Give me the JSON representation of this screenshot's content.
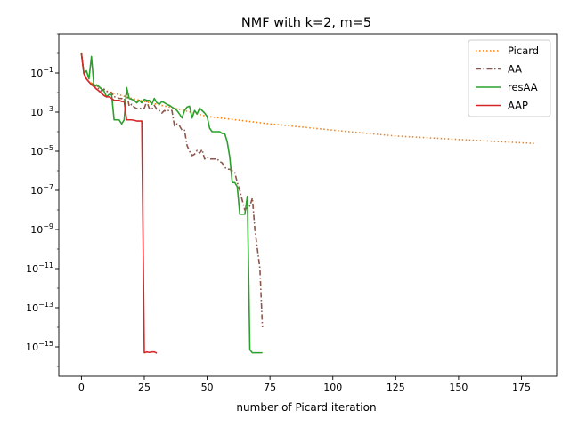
{
  "chart_data": {
    "type": "line",
    "title": "NMF with k=2, m=5",
    "xlabel": "number of Picard iteration",
    "ylabel": "",
    "yscale": "log",
    "xlim": [
      -9,
      189
    ],
    "ylim": [
      3.16e-17,
      10
    ],
    "xticks": [
      0,
      25,
      50,
      75,
      100,
      125,
      150,
      175
    ],
    "xtick_labels": [
      "0",
      "25",
      "50",
      "75",
      "100",
      "125",
      "150",
      "175"
    ],
    "yticks": [
      0.1,
      0.001,
      1e-05,
      1e-07,
      1e-09,
      1e-11,
      1e-13,
      1e-15
    ],
    "ytick_labels": [
      {
        "base": "10",
        "exp": "−1"
      },
      {
        "base": "10",
        "exp": "−3"
      },
      {
        "base": "10",
        "exp": "−5"
      },
      {
        "base": "10",
        "exp": "−7"
      },
      {
        "base": "10",
        "exp": "−9"
      },
      {
        "base": "10",
        "exp": "−11"
      },
      {
        "base": "10",
        "exp": "−13"
      },
      {
        "base": "10",
        "exp": "−15"
      }
    ],
    "grid": false,
    "legend_position": "top-right",
    "series": [
      {
        "name": "Picard",
        "color": "#ff7f0e",
        "dash": "dotted",
        "x": [
          0,
          1,
          2,
          3,
          4,
          5,
          10,
          20,
          30,
          40,
          50,
          75,
          100,
          125,
          150,
          180
        ],
        "y": [
          1.0,
          0.1,
          0.05,
          0.035,
          0.03,
          0.025,
          0.012,
          0.005,
          0.0025,
          0.0013,
          0.0006,
          0.00025,
          0.00012,
          6e-05,
          4e-05,
          2.5e-05
        ]
      },
      {
        "name": "AA",
        "color": "#8c564b",
        "dash": "dashdot",
        "x": [
          0,
          1,
          2,
          3,
          4,
          5,
          6,
          7,
          8,
          9,
          10,
          11,
          12,
          13,
          14,
          15,
          16,
          17,
          18,
          19,
          20,
          21,
          22,
          23,
          24,
          25,
          26,
          27,
          28,
          29,
          30,
          31,
          32,
          33,
          34,
          35,
          36,
          37,
          38,
          39,
          40,
          41,
          42,
          43,
          44,
          45,
          46,
          47,
          48,
          49,
          50,
          51,
          52,
          53,
          54,
          55,
          56,
          57,
          58,
          59,
          60,
          61,
          62,
          63,
          64,
          65,
          66,
          67,
          68,
          69,
          70,
          71,
          72
        ],
        "y": [
          1.0,
          0.1,
          0.05,
          0.035,
          0.03,
          0.025,
          0.02,
          0.015,
          0.012,
          0.015,
          0.012,
          0.009,
          0.01,
          0.006,
          0.006,
          0.005,
          0.005,
          0.004,
          0.009,
          0.002,
          0.0025,
          0.0018,
          0.0015,
          0.0016,
          0.0015,
          0.0016,
          0.0035,
          0.0015,
          0.0014,
          0.0022,
          0.0014,
          0.0012,
          0.0009,
          0.0012,
          0.0011,
          0.0013,
          0.0012,
          0.0002,
          0.00025,
          0.0002,
          0.00012,
          0.00012,
          2e-05,
          1e-05,
          6e-06,
          7e-06,
          1.1e-05,
          8e-06,
          1.2e-05,
          4e-06,
          5e-06,
          4e-06,
          4e-06,
          4e-06,
          4e-06,
          3e-06,
          2.5e-06,
          1.5e-06,
          1.2e-06,
          1.2e-06,
          1e-06,
          8e-07,
          2.5e-07,
          1e-07,
          3e-08,
          1e-08,
          1.3e-08,
          1.6e-08,
          4e-08,
          1e-09,
          1e-10,
          1e-11,
          1e-14
        ]
      },
      {
        "name": "resAA",
        "color": "#2ca02c",
        "dash": "solid",
        "x": [
          0,
          1,
          2,
          3,
          4,
          5,
          6,
          7,
          8,
          9,
          10,
          11,
          12,
          13,
          14,
          15,
          16,
          17,
          18,
          19,
          20,
          21,
          22,
          23,
          24,
          25,
          26,
          27,
          28,
          29,
          30,
          31,
          32,
          33,
          34,
          35,
          36,
          37,
          38,
          39,
          40,
          41,
          42,
          43,
          44,
          45,
          46,
          47,
          48,
          49,
          50,
          51,
          52,
          53,
          54,
          55,
          56,
          57,
          58,
          59,
          60,
          61,
          62,
          63,
          64,
          65,
          66,
          67,
          68,
          69,
          70,
          71,
          72
        ],
        "y": [
          1.0,
          0.09,
          0.13,
          0.05,
          0.7,
          0.02,
          0.025,
          0.02,
          0.015,
          0.012,
          0.006,
          0.008,
          0.008,
          0.0004,
          0.0004,
          0.0004,
          0.00025,
          0.0004,
          0.018,
          0.005,
          0.0045,
          0.004,
          0.003,
          0.004,
          0.003,
          0.0045,
          0.004,
          0.004,
          0.0025,
          0.005,
          0.003,
          0.0025,
          0.0035,
          0.003,
          0.0025,
          0.0022,
          0.0018,
          0.0015,
          0.0012,
          0.0008,
          0.0005,
          0.0012,
          0.0018,
          0.002,
          0.0005,
          0.0012,
          0.0008,
          0.0016,
          0.0012,
          0.0009,
          0.0006,
          0.00015,
          0.0001,
          0.0001,
          0.0001,
          0.0001,
          8e-05,
          8e-05,
          3e-05,
          5e-06,
          2.5e-07,
          2.5e-07,
          1.5e-07,
          6e-09,
          6e-09,
          6e-09,
          5e-08,
          7e-16,
          5e-16,
          5e-16,
          5e-16,
          5e-16,
          5e-16
        ]
      },
      {
        "name": "AAP",
        "color": "#d62728",
        "dash": "solid",
        "x": [
          0,
          1,
          2,
          3,
          4,
          5,
          6,
          7,
          8,
          9,
          10,
          11,
          12,
          13,
          14,
          15,
          16,
          17,
          18,
          19,
          20,
          21,
          22,
          23,
          24,
          25,
          26,
          27,
          28,
          29,
          30
        ],
        "y": [
          1.0,
          0.09,
          0.05,
          0.035,
          0.025,
          0.02,
          0.015,
          0.012,
          0.009,
          0.007,
          0.006,
          0.006,
          0.005,
          0.004,
          0.004,
          0.004,
          0.0035,
          0.0035,
          0.0004,
          0.0004,
          0.0004,
          0.00038,
          0.00035,
          0.00035,
          0.00035,
          5e-16,
          5.5e-16,
          5.2e-16,
          5.5e-16,
          5.5e-16,
          4.8e-16
        ]
      }
    ]
  }
}
